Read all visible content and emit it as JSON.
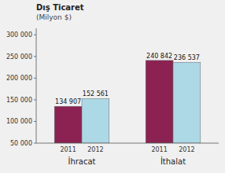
{
  "chart_data": {
    "type": "bar",
    "title": "Dış Ticaret",
    "subtitle": "(Milyon $)",
    "categories": [
      "İhracat",
      "İthalat"
    ],
    "series": [
      {
        "name": "2011",
        "color": "#8B2252",
        "values": [
          134907,
          240842
        ],
        "value_labels": [
          "134 907",
          "240 842"
        ]
      },
      {
        "name": "2012",
        "color": "#ADD8E6",
        "values": [
          152561,
          236537
        ],
        "value_labels": [
          "152 561",
          "236 537"
        ]
      }
    ],
    "ylim": [
      50000,
      315000
    ],
    "yticks": [
      {
        "value": 50000,
        "label": "50 000"
      },
      {
        "value": 100000,
        "label": "100 000"
      },
      {
        "value": 150000,
        "label": "150 000"
      },
      {
        "value": 200000,
        "label": "200 000"
      },
      {
        "value": 250000,
        "label": "250 000"
      },
      {
        "value": 300000,
        "label": "300 000"
      }
    ],
    "data_labels": true,
    "grid": false
  }
}
